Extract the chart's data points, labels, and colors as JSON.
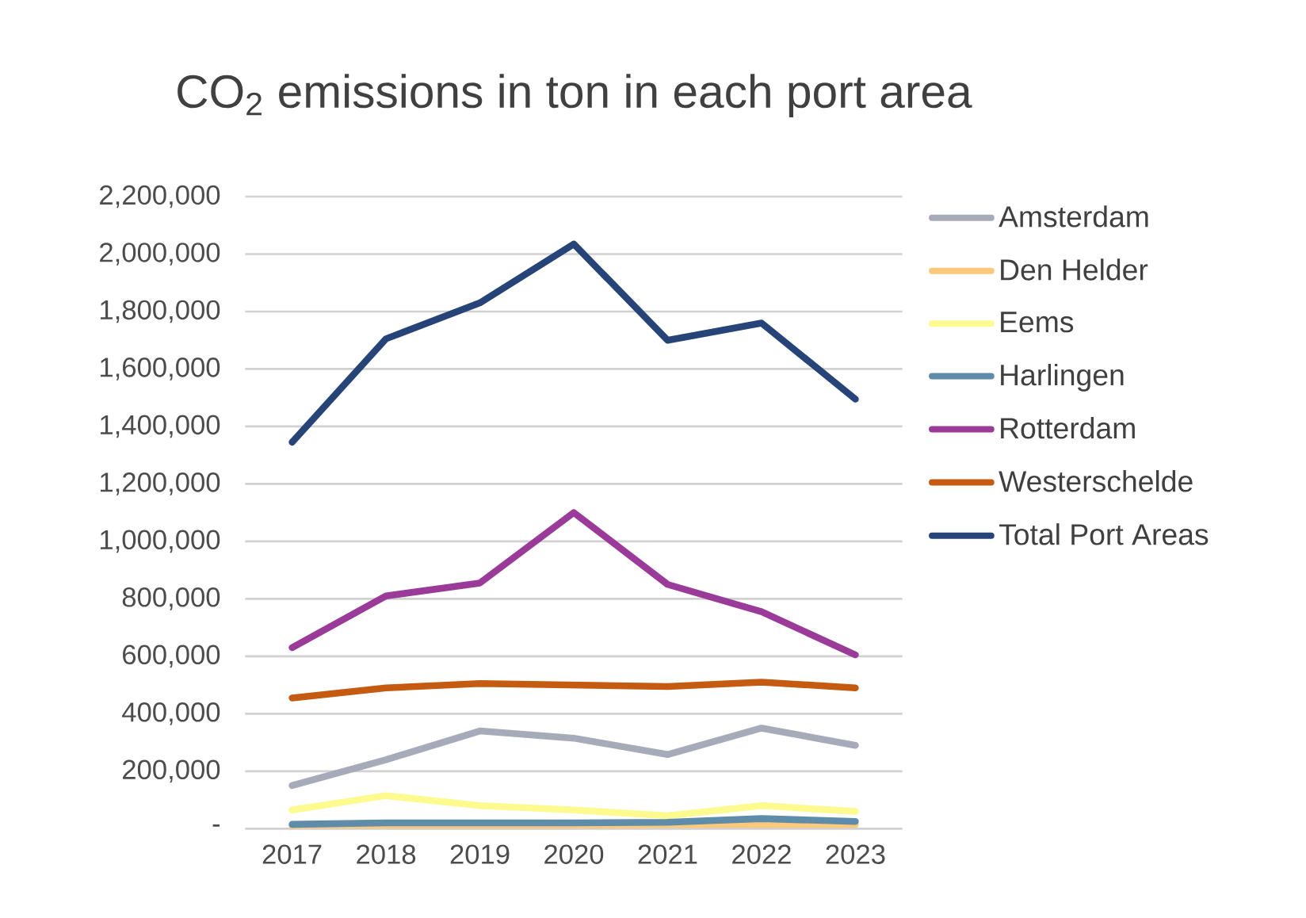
{
  "chart_data": {
    "type": "line",
    "title": "CO$_{2}$ emissions in ton in each port area",
    "categories": [
      "2017",
      "2018",
      "2019",
      "2020",
      "2021",
      "2022",
      "2023"
    ],
    "series": [
      {
        "name": "Amsterdam",
        "color": "#a5abb8",
        "values": [
          150000,
          240000,
          340000,
          315000,
          258000,
          350000,
          290000
        ]
      },
      {
        "name": "Den Helder",
        "color": "#fcc97a",
        "values": [
          10000,
          12000,
          12000,
          12000,
          14000,
          15000,
          15000
        ]
      },
      {
        "name": "Eems",
        "color": "#fdfa8f",
        "values": [
          65000,
          115000,
          80000,
          65000,
          45000,
          80000,
          60000
        ]
      },
      {
        "name": "Harlingen",
        "color": "#5f8ca8",
        "values": [
          15000,
          20000,
          20000,
          20000,
          22000,
          35000,
          25000
        ]
      },
      {
        "name": "Rotterdam",
        "color": "#9a3a99",
        "values": [
          630000,
          810000,
          855000,
          1100000,
          850000,
          755000,
          605000
        ]
      },
      {
        "name": "Westerschelde",
        "color": "#c55a11",
        "values": [
          455000,
          490000,
          505000,
          500000,
          495000,
          510000,
          490000
        ]
      },
      {
        "name": "Total Port Areas",
        "color": "#264478",
        "values": [
          1345000,
          1705000,
          1830000,
          2035000,
          1700000,
          1760000,
          1495000
        ]
      }
    ],
    "ylim": [
      0,
      2200000
    ],
    "yticks": [
      {
        "value": 0,
        "label": "-"
      },
      {
        "value": 200000,
        "label": "200,000"
      },
      {
        "value": 400000,
        "label": "400,000"
      },
      {
        "value": 600000,
        "label": "600,000"
      },
      {
        "value": 800000,
        "label": "800,000"
      },
      {
        "value": 1000000,
        "label": "1,000,000"
      },
      {
        "value": 1200000,
        "label": "1,200,000"
      },
      {
        "value": 1400000,
        "label": "1,400,000"
      },
      {
        "value": 1600000,
        "label": "1,600,000"
      },
      {
        "value": 1800000,
        "label": "1,800,000"
      },
      {
        "value": 2000000,
        "label": "2,000,000"
      },
      {
        "value": 2200000,
        "label": "2,200,000"
      }
    ],
    "grid": "y",
    "legend": "right",
    "marker": "none",
    "line_style": "solid"
  }
}
